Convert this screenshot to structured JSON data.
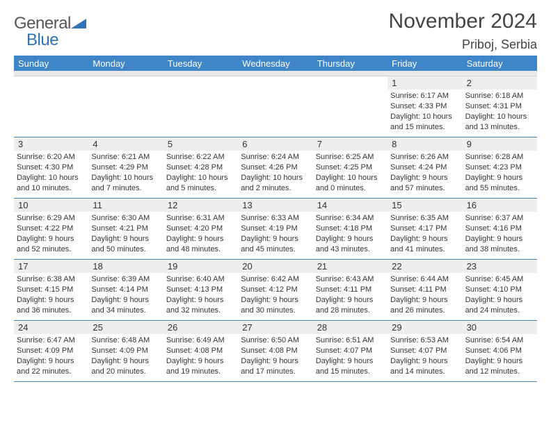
{
  "brand": {
    "line1": "General",
    "line2": "Blue",
    "accent_color": "#2f73b6"
  },
  "header": {
    "title": "November 2024",
    "location": "Priboj, Serbia"
  },
  "colors": {
    "daybar_bg": "#3e86c7",
    "daybar_text": "#ffffff",
    "date_bg": "#eeeeee",
    "cell_border": "#4a8cc8",
    "text": "#333333"
  },
  "day_names": [
    "Sunday",
    "Monday",
    "Tuesday",
    "Wednesday",
    "Thursday",
    "Friday",
    "Saturday"
  ],
  "calendar": {
    "type": "table",
    "first_weekday_index": 5,
    "days": [
      {
        "n": 1,
        "sunrise": "6:17 AM",
        "sunset": "4:33 PM",
        "daylight": "10 hours and 15 minutes."
      },
      {
        "n": 2,
        "sunrise": "6:18 AM",
        "sunset": "4:31 PM",
        "daylight": "10 hours and 13 minutes."
      },
      {
        "n": 3,
        "sunrise": "6:20 AM",
        "sunset": "4:30 PM",
        "daylight": "10 hours and 10 minutes."
      },
      {
        "n": 4,
        "sunrise": "6:21 AM",
        "sunset": "4:29 PM",
        "daylight": "10 hours and 7 minutes."
      },
      {
        "n": 5,
        "sunrise": "6:22 AM",
        "sunset": "4:28 PM",
        "daylight": "10 hours and 5 minutes."
      },
      {
        "n": 6,
        "sunrise": "6:24 AM",
        "sunset": "4:26 PM",
        "daylight": "10 hours and 2 minutes."
      },
      {
        "n": 7,
        "sunrise": "6:25 AM",
        "sunset": "4:25 PM",
        "daylight": "10 hours and 0 minutes."
      },
      {
        "n": 8,
        "sunrise": "6:26 AM",
        "sunset": "4:24 PM",
        "daylight": "9 hours and 57 minutes."
      },
      {
        "n": 9,
        "sunrise": "6:28 AM",
        "sunset": "4:23 PM",
        "daylight": "9 hours and 55 minutes."
      },
      {
        "n": 10,
        "sunrise": "6:29 AM",
        "sunset": "4:22 PM",
        "daylight": "9 hours and 52 minutes."
      },
      {
        "n": 11,
        "sunrise": "6:30 AM",
        "sunset": "4:21 PM",
        "daylight": "9 hours and 50 minutes."
      },
      {
        "n": 12,
        "sunrise": "6:31 AM",
        "sunset": "4:20 PM",
        "daylight": "9 hours and 48 minutes."
      },
      {
        "n": 13,
        "sunrise": "6:33 AM",
        "sunset": "4:19 PM",
        "daylight": "9 hours and 45 minutes."
      },
      {
        "n": 14,
        "sunrise": "6:34 AM",
        "sunset": "4:18 PM",
        "daylight": "9 hours and 43 minutes."
      },
      {
        "n": 15,
        "sunrise": "6:35 AM",
        "sunset": "4:17 PM",
        "daylight": "9 hours and 41 minutes."
      },
      {
        "n": 16,
        "sunrise": "6:37 AM",
        "sunset": "4:16 PM",
        "daylight": "9 hours and 38 minutes."
      },
      {
        "n": 17,
        "sunrise": "6:38 AM",
        "sunset": "4:15 PM",
        "daylight": "9 hours and 36 minutes."
      },
      {
        "n": 18,
        "sunrise": "6:39 AM",
        "sunset": "4:14 PM",
        "daylight": "9 hours and 34 minutes."
      },
      {
        "n": 19,
        "sunrise": "6:40 AM",
        "sunset": "4:13 PM",
        "daylight": "9 hours and 32 minutes."
      },
      {
        "n": 20,
        "sunrise": "6:42 AM",
        "sunset": "4:12 PM",
        "daylight": "9 hours and 30 minutes."
      },
      {
        "n": 21,
        "sunrise": "6:43 AM",
        "sunset": "4:11 PM",
        "daylight": "9 hours and 28 minutes."
      },
      {
        "n": 22,
        "sunrise": "6:44 AM",
        "sunset": "4:11 PM",
        "daylight": "9 hours and 26 minutes."
      },
      {
        "n": 23,
        "sunrise": "6:45 AM",
        "sunset": "4:10 PM",
        "daylight": "9 hours and 24 minutes."
      },
      {
        "n": 24,
        "sunrise": "6:47 AM",
        "sunset": "4:09 PM",
        "daylight": "9 hours and 22 minutes."
      },
      {
        "n": 25,
        "sunrise": "6:48 AM",
        "sunset": "4:09 PM",
        "daylight": "9 hours and 20 minutes."
      },
      {
        "n": 26,
        "sunrise": "6:49 AM",
        "sunset": "4:08 PM",
        "daylight": "9 hours and 19 minutes."
      },
      {
        "n": 27,
        "sunrise": "6:50 AM",
        "sunset": "4:08 PM",
        "daylight": "9 hours and 17 minutes."
      },
      {
        "n": 28,
        "sunrise": "6:51 AM",
        "sunset": "4:07 PM",
        "daylight": "9 hours and 15 minutes."
      },
      {
        "n": 29,
        "sunrise": "6:53 AM",
        "sunset": "4:07 PM",
        "daylight": "9 hours and 14 minutes."
      },
      {
        "n": 30,
        "sunrise": "6:54 AM",
        "sunset": "4:06 PM",
        "daylight": "9 hours and 12 minutes."
      }
    ],
    "labels": {
      "sunrise": "Sunrise:",
      "sunset": "Sunset:",
      "daylight": "Daylight:"
    }
  }
}
